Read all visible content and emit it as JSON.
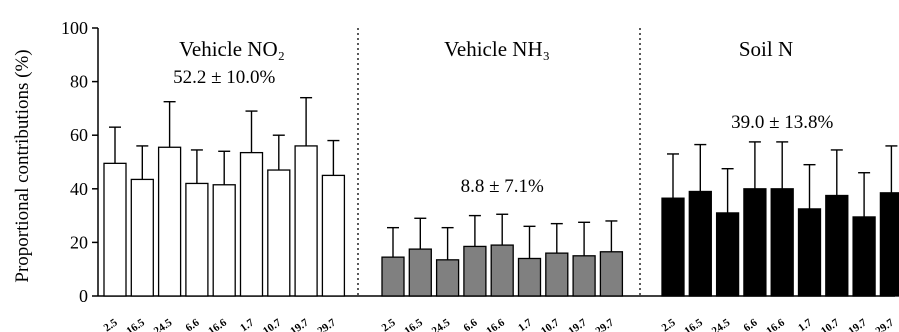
{
  "chart_data": {
    "type": "bar",
    "ylabel": "Proportional contributions (%)",
    "ylim": [
      0,
      100
    ],
    "yticks": [
      0,
      20,
      40,
      60,
      80,
      100
    ],
    "grid": false,
    "error_bars": "upper standard deviation",
    "panels": [
      {
        "title": "Vehicle NO₂",
        "annotation": "52.2 ± 10.0%",
        "color": "#ffffff",
        "categories": [
          "2.5",
          "16.5",
          "24.5",
          "6.6",
          "16.6",
          "1.7",
          "10.7",
          "19.7",
          "29.7"
        ],
        "values": [
          49.5,
          43.5,
          55.5,
          42,
          41.5,
          53.5,
          47,
          56,
          45
        ],
        "errors": [
          13.5,
          12.5,
          17,
          12.5,
          12.5,
          15.5,
          13,
          18,
          13
        ]
      },
      {
        "title": "Vehicle NH₃",
        "annotation": "8.8 ± 7.1%",
        "color": "#808080",
        "categories": [
          "2.5",
          "16.5",
          "24.5",
          "6.6",
          "16.6",
          "1.7",
          "10.7",
          "19.7",
          "29.7"
        ],
        "values": [
          14.5,
          17.5,
          13.5,
          18.5,
          19,
          14,
          16,
          15,
          16.5
        ],
        "errors": [
          11,
          11.5,
          12,
          11.5,
          11.5,
          12,
          11,
          12.5,
          11.5
        ]
      },
      {
        "title": "Soil N",
        "annotation": "39.0 ± 13.8%",
        "color": "#000000",
        "categories": [
          "2.5",
          "16.5",
          "24.5",
          "6.6",
          "16.6",
          "1.7",
          "10.7",
          "19.7",
          "29.7"
        ],
        "values": [
          36.5,
          39,
          31,
          40,
          40,
          32.5,
          37.5,
          29.5,
          38.5
        ],
        "errors": [
          16.5,
          17.5,
          16.5,
          17.5,
          17.5,
          16.5,
          17,
          16.5,
          17.5
        ]
      }
    ]
  }
}
